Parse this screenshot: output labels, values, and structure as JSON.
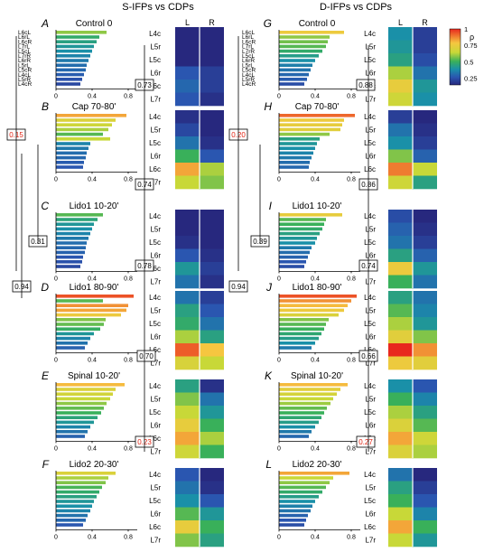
{
  "columns": [
    {
      "title": "S-IFPs vs CDPs"
    },
    {
      "title": "D-IFPs vs CDPs"
    }
  ],
  "heatmap_headers": [
    "L",
    "R"
  ],
  "heatmap_rows": [
    "L4c",
    "L5r",
    "L5c",
    "L6r",
    "L6c",
    "L7r"
  ],
  "bar_axis_ticks": [
    "0",
    "0.4",
    "0.8"
  ],
  "colorbar": {
    "label": "ρ",
    "ticks": [
      "1",
      "0.75",
      "0.5",
      "0.25"
    ],
    "tick_values": [
      1,
      0.75,
      0.5,
      0.25
    ]
  },
  "roots": [
    "L6cL",
    "L6rL",
    "L6cR",
    "L7rL",
    "L5cL",
    "L7rR",
    "L6rR",
    "L5rL",
    "L5cR",
    "L4cL",
    "L5rR",
    "L4cR"
  ],
  "bar_labels": {
    "left": [
      "L6cL",
      "L6rL",
      "L6cR",
      "L7rL",
      "L5cL",
      "L7rR",
      "L6rR",
      "L5rL",
      "L5cR",
      "L4cL",
      "L5rR",
      "L4cR"
    ],
    "right": [
      "L6cL",
      "L6rL",
      "L6cR",
      "L7rL",
      "L7rR",
      "L5cL",
      "L6rR",
      "L5rL",
      "L5cR",
      "L4cL",
      "L5rR",
      "L4cR"
    ]
  },
  "panels": [
    {
      "letter": "A",
      "title": "Control 0",
      "values": [
        0.56,
        0.48,
        0.45,
        0.42,
        0.4,
        0.38,
        0.36,
        0.34,
        0.33,
        0.31,
        0.29,
        0.27
      ],
      "heat": [
        [
          0.2,
          0.2
        ],
        [
          0.2,
          0.2
        ],
        [
          0.2,
          0.2
        ],
        [
          0.3,
          0.25
        ],
        [
          0.33,
          0.25
        ],
        [
          0.3,
          0.22
        ]
      ]
    },
    {
      "letter": "B",
      "title": "Cap 70-80'",
      "values": [
        0.78,
        0.66,
        0.62,
        0.58,
        0.52,
        0.6,
        0.38,
        0.36,
        0.34,
        0.33,
        0.31,
        0.3
      ],
      "heat": [
        [
          0.22,
          0.2
        ],
        [
          0.27,
          0.2
        ],
        [
          0.35,
          0.22
        ],
        [
          0.5,
          0.3
        ],
        [
          0.78,
          0.58
        ],
        [
          0.6,
          0.55
        ]
      ]
    },
    {
      "letter": "C",
      "title": "Lido1 10-20'",
      "values": [
        0.52,
        0.46,
        0.42,
        0.4,
        0.38,
        0.36,
        0.34,
        0.33,
        0.32,
        0.3,
        0.29,
        0.27
      ],
      "heat": [
        [
          0.2,
          0.2
        ],
        [
          0.2,
          0.2
        ],
        [
          0.22,
          0.2
        ],
        [
          0.3,
          0.22
        ],
        [
          0.42,
          0.25
        ],
        [
          0.35,
          0.22
        ]
      ]
    },
    {
      "letter": "D",
      "title": "Lido1 80-90'",
      "values": [
        0.86,
        0.52,
        0.8,
        0.78,
        0.72,
        0.55,
        0.53,
        0.49,
        0.42,
        0.38,
        0.35,
        0.32
      ],
      "heat": [
        [
          0.35,
          0.25
        ],
        [
          0.45,
          0.3
        ],
        [
          0.48,
          0.35
        ],
        [
          0.58,
          0.45
        ],
        [
          0.85,
          0.75
        ],
        [
          0.65,
          0.6
        ]
      ]
    },
    {
      "letter": "E",
      "title": "Spinal 10-20'",
      "values": [
        0.76,
        0.66,
        0.63,
        0.6,
        0.56,
        0.53,
        0.5,
        0.46,
        0.42,
        0.38,
        0.35,
        0.32
      ],
      "heat": [
        [
          0.45,
          0.22
        ],
        [
          0.55,
          0.35
        ],
        [
          0.6,
          0.42
        ],
        [
          0.7,
          0.5
        ],
        [
          0.78,
          0.58
        ],
        [
          0.62,
          0.5
        ]
      ]
    },
    {
      "letter": "F",
      "title": "Lido2 20-30'",
      "values": [
        0.66,
        0.58,
        0.55,
        0.51,
        0.48,
        0.45,
        0.42,
        0.4,
        0.38,
        0.35,
        0.33,
        0.3
      ],
      "heat": [
        [
          0.3,
          0.2
        ],
        [
          0.35,
          0.22
        ],
        [
          0.4,
          0.3
        ],
        [
          0.52,
          0.42
        ],
        [
          0.7,
          0.5
        ],
        [
          0.55,
          0.45
        ]
      ]
    },
    {
      "letter": "G",
      "title": "Control 0",
      "values": [
        0.72,
        0.56,
        0.54,
        0.52,
        0.48,
        0.44,
        0.4,
        0.37,
        0.35,
        0.33,
        0.31,
        0.28
      ],
      "heat": [
        [
          0.4,
          0.25
        ],
        [
          0.42,
          0.25
        ],
        [
          0.45,
          0.28
        ],
        [
          0.58,
          0.35
        ],
        [
          0.7,
          0.42
        ],
        [
          0.62,
          0.4
        ]
      ]
    },
    {
      "letter": "H",
      "title": "Cap 70-80'",
      "values": [
        0.84,
        0.72,
        0.7,
        0.68,
        0.56,
        0.45,
        0.42,
        0.4,
        0.38,
        0.36,
        0.34,
        0.33
      ],
      "heat": [
        [
          0.25,
          0.2
        ],
        [
          0.35,
          0.22
        ],
        [
          0.4,
          0.25
        ],
        [
          0.55,
          0.32
        ],
        [
          0.82,
          0.6
        ],
        [
          0.62,
          0.45
        ]
      ]
    },
    {
      "letter": "I",
      "title": "Lido1 10-20'",
      "values": [
        0.7,
        0.52,
        0.5,
        0.48,
        0.45,
        0.42,
        0.4,
        0.36,
        0.34,
        0.32,
        0.3,
        0.28
      ],
      "heat": [
        [
          0.28,
          0.2
        ],
        [
          0.32,
          0.22
        ],
        [
          0.35,
          0.25
        ],
        [
          0.45,
          0.32
        ],
        [
          0.72,
          0.42
        ],
        [
          0.5,
          0.35
        ]
      ]
    },
    {
      "letter": "J",
      "title": "Lido1 80-90'",
      "values": [
        0.86,
        0.8,
        0.76,
        0.72,
        0.66,
        0.55,
        0.52,
        0.5,
        0.47,
        0.44,
        0.4,
        0.36
      ],
      "heat": [
        [
          0.45,
          0.35
        ],
        [
          0.52,
          0.38
        ],
        [
          0.58,
          0.42
        ],
        [
          0.68,
          0.55
        ],
        [
          0.9,
          0.8
        ],
        [
          0.72,
          0.68
        ]
      ]
    },
    {
      "letter": "K",
      "title": "Spinal 10-20'",
      "values": [
        0.76,
        0.68,
        0.64,
        0.6,
        0.57,
        0.53,
        0.5,
        0.47,
        0.44,
        0.4,
        0.36,
        0.33
      ],
      "heat": [
        [
          0.4,
          0.3
        ],
        [
          0.5,
          0.38
        ],
        [
          0.58,
          0.45
        ],
        [
          0.66,
          0.52
        ],
        [
          0.78,
          0.62
        ],
        [
          0.66,
          0.58
        ]
      ]
    },
    {
      "letter": "L",
      "title": "Lido2 20-30'",
      "values": [
        0.78,
        0.6,
        0.56,
        0.52,
        0.48,
        0.44,
        0.4,
        0.37,
        0.35,
        0.32,
        0.3,
        0.28
      ],
      "heat": [
        [
          0.35,
          0.2
        ],
        [
          0.45,
          0.25
        ],
        [
          0.5,
          0.3
        ],
        [
          0.6,
          0.38
        ],
        [
          0.78,
          0.5
        ],
        [
          0.6,
          0.42
        ]
      ]
    }
  ],
  "links": [
    {
      "value": "0.15",
      "color": "#e02010"
    },
    {
      "value": "0.31",
      "color": "#000000"
    },
    {
      "value": "0.94",
      "color": "#000000"
    },
    {
      "value": "0.73",
      "color": "#000000"
    },
    {
      "value": "0.74",
      "color": "#000000"
    },
    {
      "value": "0.78",
      "color": "#000000"
    },
    {
      "value": "0.70",
      "color": "#000000"
    },
    {
      "value": "0.23",
      "color": "#e02010"
    },
    {
      "value": "0.20",
      "color": "#e02010"
    },
    {
      "value": "0.39",
      "color": "#000000"
    },
    {
      "value": "0.94",
      "color": "#000000"
    },
    {
      "value": "0.88",
      "color": "#000000"
    },
    {
      "value": "0.86",
      "color": "#000000"
    },
    {
      "value": "0.74",
      "color": "#000000"
    },
    {
      "value": "0.66",
      "color": "#000000"
    },
    {
      "value": "0.27",
      "color": "#e02010"
    }
  ]
}
